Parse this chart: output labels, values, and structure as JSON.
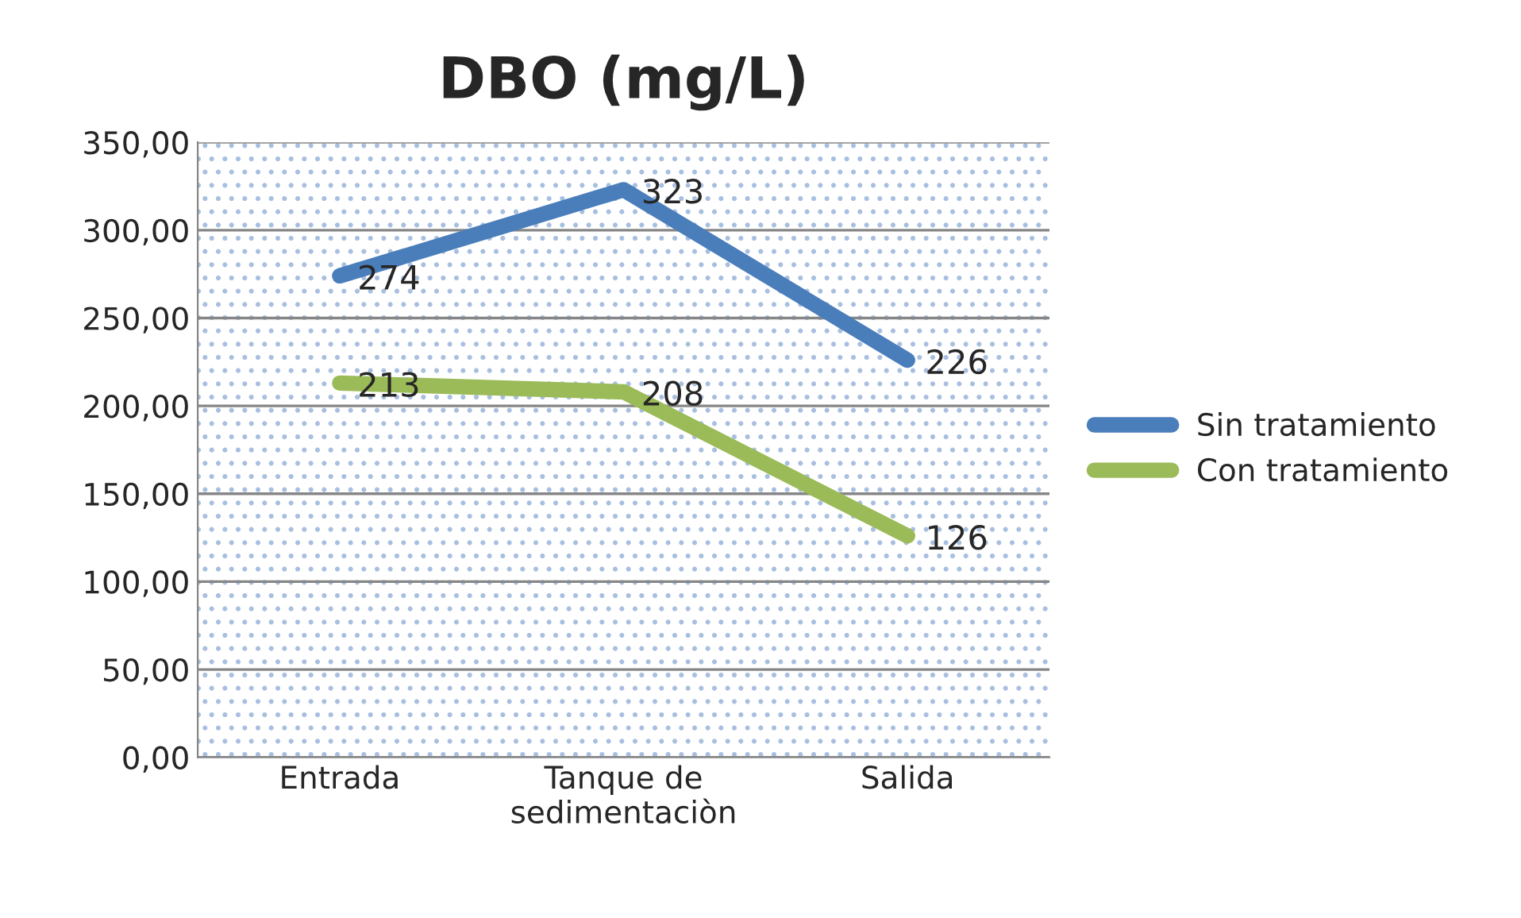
{
  "chart_data": {
    "type": "line",
    "title": "DBO (mg/L)",
    "categories": [
      "Entrada",
      "Tanque de\nsedimentaciòn",
      "Salida"
    ],
    "series": [
      {
        "name": "Sin tratamiento",
        "color": "#4a7ebb",
        "values": [
          274,
          323,
          226
        ]
      },
      {
        "name": "Con tratamiento",
        "color": "#9bbb59",
        "values": [
          213,
          208,
          126
        ]
      }
    ],
    "ylim": [
      0,
      350
    ],
    "yticks": [
      {
        "value": 0,
        "label": "0,00"
      },
      {
        "value": 50,
        "label": "50,00"
      },
      {
        "value": 100,
        "label": "100,00"
      },
      {
        "value": 150,
        "label": "150,00"
      },
      {
        "value": 200,
        "label": "200,00"
      },
      {
        "value": 250,
        "label": "250,00"
      },
      {
        "value": 300,
        "label": "300,00"
      },
      {
        "value": 350,
        "label": "350,00"
      }
    ],
    "grid": "y",
    "legend": "right",
    "data_labels": true,
    "marker": "none",
    "line_style": "solid"
  }
}
